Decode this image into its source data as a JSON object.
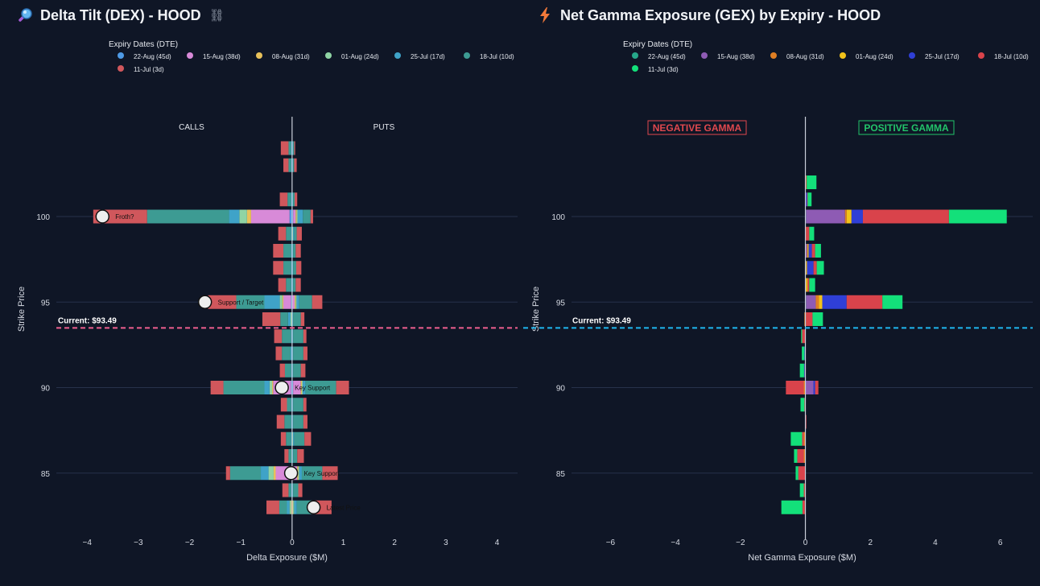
{
  "dex": {
    "title": "Delta Tilt (DEX) - HOOD",
    "icon": "magnifier-icon",
    "link_icon": "link-icon",
    "legend_title": "Expiry Dates (DTE)",
    "calls_label": "CALLS",
    "puts_label": "PUTS",
    "current_label": "Current: $93.49",
    "current_line_color": "#ef5f8f"
  },
  "gex": {
    "title": "Net Gamma Exposure (GEX) by Expiry - HOOD",
    "icon": "lightning-icon",
    "legend_title": "Expiry Dates (DTE)",
    "negative_label": "NEGATIVE GAMMA",
    "positive_label": "POSITIVE GAMMA",
    "current_label": "Current: $93.49",
    "current_line_color": "#1fb8f0"
  },
  "chart_data": [
    {
      "type": "bar",
      "orientation": "horizontal",
      "stacked": true,
      "title": "Delta Tilt (DEX) - HOOD",
      "xlabel": "Delta Exposure ($M)",
      "ylabel": "Strike Price",
      "xlim": [
        -4.6,
        4.4
      ],
      "ylim": [
        81.6,
        105.6
      ],
      "xticks": [
        -4,
        -3,
        -2,
        -1,
        0,
        1,
        2,
        3,
        4
      ],
      "yticks": [
        85,
        90,
        95,
        100
      ],
      "grid": true,
      "legend_position": "top-left",
      "current_price": 93.49,
      "strikes": [
        104,
        103,
        102,
        101,
        100,
        99,
        98,
        97,
        96,
        95,
        94,
        93,
        92,
        91,
        90,
        89,
        88,
        87,
        86,
        85,
        84,
        83
      ],
      "series": [
        {
          "name": "22-Aug (45d)",
          "color": "#4e9ae6",
          "neg": [
            0,
            0,
            0,
            0,
            0.05,
            0,
            0,
            0,
            0,
            0.02,
            0,
            0,
            0,
            0,
            0.02,
            0,
            0,
            0,
            0,
            0.02,
            0,
            0
          ],
          "pos": [
            0,
            0,
            0,
            0,
            0.02,
            0,
            0,
            0,
            0,
            0,
            0,
            0,
            0,
            0,
            0.02,
            0,
            0,
            0,
            0,
            0,
            0,
            0
          ]
        },
        {
          "name": "15-Aug (38d)",
          "color": "#d88ad8",
          "neg": [
            0,
            0,
            0,
            0,
            0.75,
            0,
            0,
            0,
            0,
            0.15,
            0,
            0,
            0,
            0,
            0.35,
            0,
            0,
            0,
            0,
            0.3,
            0,
            0
          ],
          "pos": [
            0,
            0,
            0,
            0,
            0.05,
            0,
            0,
            0,
            0,
            0.05,
            0,
            0,
            0,
            0,
            0.15,
            0,
            0,
            0,
            0,
            0.1,
            0,
            0
          ]
        },
        {
          "name": "08-Aug (31d)",
          "color": "#e8c15a",
          "neg": [
            0,
            0,
            0,
            0,
            0.08,
            0,
            0,
            0,
            0,
            0.02,
            0,
            0,
            0,
            0,
            0.02,
            0,
            0,
            0,
            0,
            0.04,
            0,
            0.02
          ],
          "pos": [
            0,
            0,
            0,
            0,
            0.02,
            0,
            0,
            0,
            0,
            0.02,
            0,
            0,
            0,
            0,
            0.02,
            0,
            0,
            0,
            0,
            0.02,
            0,
            0.02
          ]
        },
        {
          "name": "01-Aug (24d)",
          "color": "#8fd4a4",
          "neg": [
            0,
            0,
            0,
            0,
            0.15,
            0,
            0,
            0,
            0,
            0.05,
            0.03,
            0,
            0,
            0,
            0.05,
            0,
            0,
            0,
            0,
            0.1,
            0,
            0.03
          ],
          "pos": [
            0,
            0,
            0,
            0,
            0.02,
            0.02,
            0,
            0,
            0,
            0.02,
            0,
            0,
            0,
            0,
            0.02,
            0,
            0,
            0.02,
            0,
            0.02,
            0,
            0.02
          ]
        },
        {
          "name": "25-Jul (17d)",
          "color": "#3fa3c8",
          "neg": [
            0.02,
            0.02,
            0,
            0.02,
            0.2,
            0.02,
            0.02,
            0.02,
            0.02,
            0.3,
            0.05,
            0.02,
            0.03,
            0.02,
            0.1,
            0.02,
            0.02,
            0.02,
            0,
            0.15,
            0.02,
            0.05
          ],
          "pos": [
            0.02,
            0.02,
            0,
            0.02,
            0.1,
            0.02,
            0.02,
            0.02,
            0.02,
            0.05,
            0.02,
            0.02,
            0.02,
            0.02,
            0.05,
            0.02,
            0.02,
            0.02,
            0.02,
            0.05,
            0.02,
            0.05
          ]
        },
        {
          "name": "18-Jul (10d)",
          "color": "#3d9b93",
          "neg": [
            0.05,
            0.05,
            0,
            0.07,
            1.6,
            0.1,
            0.15,
            0.15,
            0.1,
            0.55,
            0.15,
            0.18,
            0.17,
            0.12,
            0.8,
            0.08,
            0.13,
            0.1,
            0.07,
            0.6,
            0.05,
            0.15
          ],
          "pos": [
            0.02,
            0.02,
            0,
            0.03,
            0.15,
            0.05,
            0.05,
            0.06,
            0.05,
            0.25,
            0.15,
            0.2,
            0.2,
            0.15,
            0.6,
            0.2,
            0.2,
            0.2,
            0.08,
            0.4,
            0.1,
            0.3
          ],
          "pos_top": true
        },
        {
          "name": "11-Jul (3d)",
          "color": "#d0575c",
          "neg": [
            0.15,
            0.1,
            0,
            0.15,
            1.05,
            0.15,
            0.2,
            0.2,
            0.15,
            0.55,
            0.35,
            0.15,
            0.12,
            0.1,
            0.25,
            0.12,
            0.15,
            0.1,
            0.08,
            0.08,
            0.12,
            0.25
          ],
          "pos": [
            0.02,
            0.05,
            0,
            0.05,
            0.05,
            0.1,
            0.1,
            0.1,
            0.1,
            0.2,
            0.07,
            0.06,
            0.08,
            0.09,
            0.25,
            0.06,
            0.08,
            0.13,
            0.13,
            0.3,
            0.08,
            0.38
          ]
        }
      ],
      "annotations": [
        {
          "strike": 100,
          "x": -3.7,
          "text": "Froth?"
        },
        {
          "strike": 95,
          "x": -1.7,
          "text": "Support / Target"
        },
        {
          "strike": 90,
          "x": -0.2,
          "text": "Key Support"
        },
        {
          "strike": 85,
          "x": -0.02,
          "text": "Key Support"
        },
        {
          "strike": 83,
          "x": 0.42,
          "text": "Latest Price"
        }
      ]
    },
    {
      "type": "bar",
      "orientation": "horizontal",
      "stacked": true,
      "title": "Net Gamma Exposure (GEX) by Expiry - HOOD",
      "xlabel": "Net Gamma Exposure ($M)",
      "ylabel": "Strike Price",
      "xlim": [
        -7.2,
        7.0
      ],
      "ylim": [
        81.6,
        105.6
      ],
      "xticks": [
        -6,
        -4,
        -2,
        0,
        2,
        4,
        6
      ],
      "yticks": [
        85,
        90,
        95,
        100
      ],
      "grid": true,
      "legend_position": "top-left",
      "current_price": 93.49,
      "strikes": [
        102,
        101,
        100,
        99,
        98,
        97,
        96,
        95,
        94,
        93,
        92,
        91,
        90,
        89,
        88,
        87,
        86,
        85,
        84,
        83
      ],
      "series": [
        {
          "name": "22-Aug (45d)",
          "color": "#26a88a",
          "pos": [
            0,
            0,
            0.02,
            0,
            0,
            0,
            0,
            0.02,
            0,
            0,
            0,
            0,
            0,
            0,
            0,
            0,
            0,
            0,
            0,
            0
          ],
          "neg": [
            0,
            0,
            0,
            0,
            0,
            0,
            0,
            0,
            0,
            0,
            0,
            0,
            0,
            0,
            0,
            0,
            0,
            0,
            0,
            0
          ]
        },
        {
          "name": "15-Aug (38d)",
          "color": "#8e5bb4",
          "pos": [
            0,
            0,
            1.2,
            0,
            0.05,
            0,
            0,
            0.3,
            0,
            0,
            0,
            0,
            0.25,
            0,
            0,
            0,
            0,
            0,
            0,
            0
          ],
          "neg": [
            0,
            0,
            0,
            0,
            0,
            0,
            0,
            0,
            0,
            0,
            0,
            0,
            0,
            0,
            0,
            0,
            0,
            0,
            0,
            0
          ]
        },
        {
          "name": "08-Aug (31d)",
          "color": "#e07f23",
          "pos": [
            0,
            0,
            0.05,
            0.02,
            0.02,
            0.02,
            0.02,
            0.1,
            0.02,
            0,
            0,
            0,
            0,
            0,
            0,
            0,
            0,
            0,
            0,
            0
          ],
          "neg": [
            0,
            0,
            0,
            0,
            0,
            0,
            0,
            0,
            0.03,
            0,
            0,
            0.02,
            0.05,
            0,
            0,
            0.05,
            0.05,
            0,
            0.02,
            0.02
          ]
        },
        {
          "name": "01-Aug (24d)",
          "color": "#f2c21a",
          "pos": [
            0.02,
            0,
            0.15,
            0,
            0.03,
            0.03,
            0.05,
            0.1,
            0,
            0,
            0,
            0,
            0,
            0,
            0,
            0,
            0,
            0,
            0,
            0
          ],
          "neg": [
            0,
            0,
            0,
            0,
            0,
            0,
            0,
            0,
            0,
            0,
            0,
            0,
            0,
            0,
            0,
            0,
            0,
            0,
            0,
            0
          ]
        },
        {
          "name": "25-Jul (17d)",
          "color": "#2f3fd6",
          "pos": [
            0,
            0.05,
            0.35,
            0,
            0.1,
            0.2,
            0,
            0.75,
            0,
            0,
            0,
            0,
            0.05,
            0,
            0,
            0,
            0,
            0,
            0,
            0
          ],
          "neg": [
            0,
            0,
            0,
            0,
            0,
            0,
            0,
            0,
            0,
            0,
            0.03,
            0.02,
            0,
            0,
            0,
            0,
            0,
            0,
            0,
            0
          ]
        },
        {
          "name": "18-Jul (10d)",
          "color": "#d9434b",
          "pos": [
            0.02,
            0.02,
            2.65,
            0.1,
            0.1,
            0.1,
            0.05,
            1.1,
            0.2,
            0,
            0,
            0,
            0.1,
            0,
            0.03,
            0,
            0,
            0,
            0,
            0
          ],
          "neg": [
            0,
            0,
            0,
            0,
            0,
            0,
            0,
            0,
            0,
            0.1,
            0,
            0,
            0.55,
            0.03,
            0,
            0.05,
            0.2,
            0.22,
            0.03,
            0.07
          ]
        },
        {
          "name": "11-Jul (3d)",
          "color": "#13e07a",
          "pos": [
            0.3,
            0.12,
            1.78,
            0.15,
            0.18,
            0.22,
            0.18,
            0.62,
            0.32,
            0,
            0,
            0,
            0,
            0,
            0,
            0,
            0,
            0,
            0,
            0
          ],
          "neg": [
            0,
            0,
            0,
            0,
            0,
            0,
            0,
            0,
            0,
            0.03,
            0.08,
            0.13,
            0,
            0.12,
            0,
            0.35,
            0.1,
            0.08,
            0.12,
            0.65
          ]
        }
      ]
    }
  ]
}
